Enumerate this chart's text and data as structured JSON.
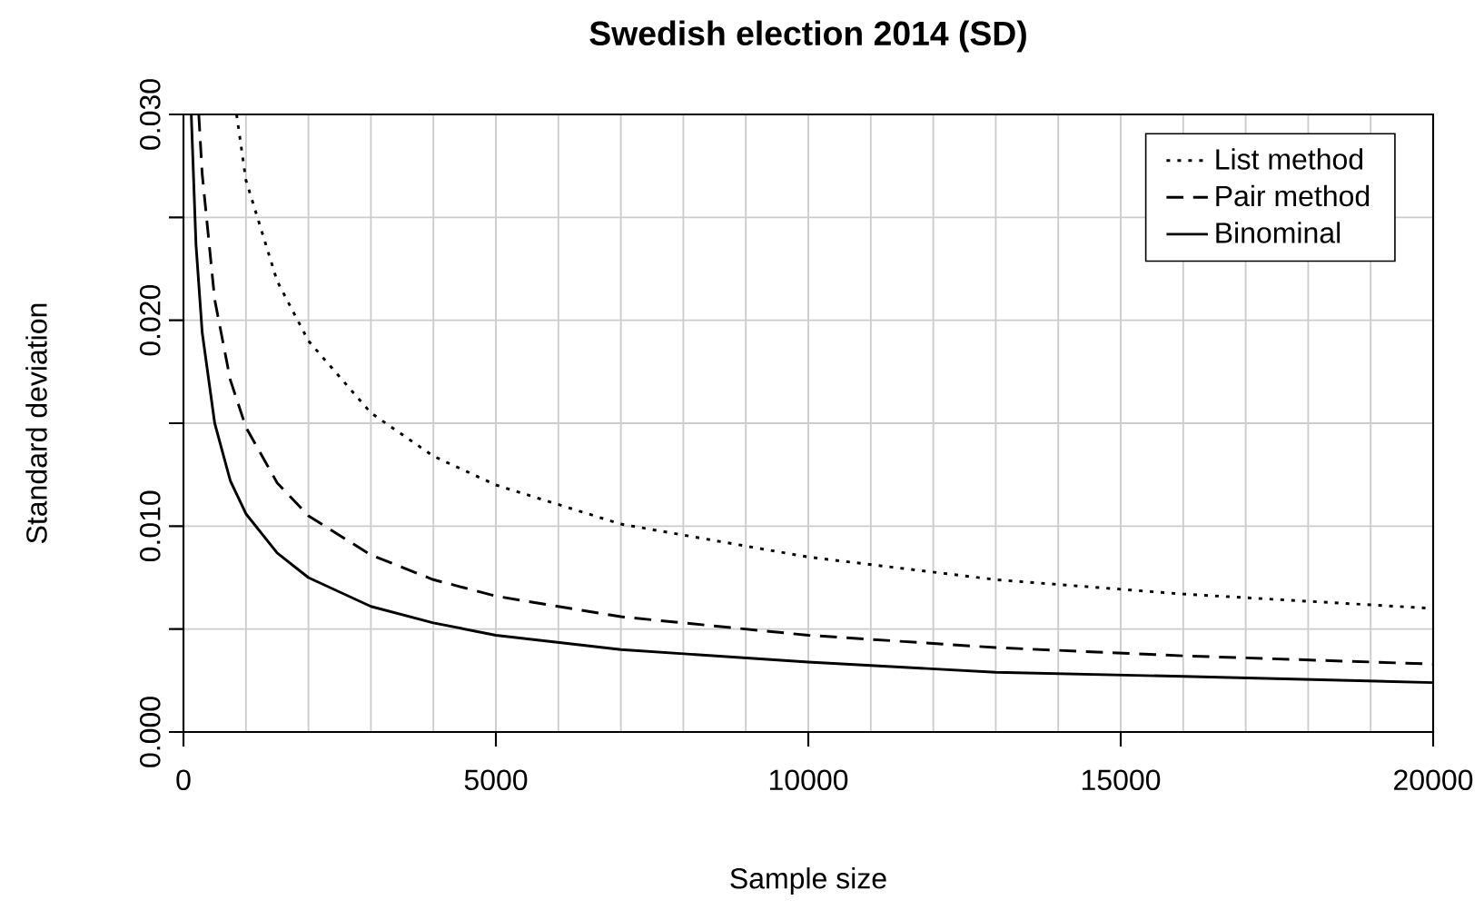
{
  "chart_data": {
    "type": "line",
    "title": "Swedish election 2014 (SD)",
    "xlabel": "Sample size",
    "ylabel": "Standard deviation",
    "xlim": [
      0,
      20000
    ],
    "ylim": [
      0,
      0.03
    ],
    "xticks": [
      0,
      {
        "value": 1000,
        "label": null
      },
      {
        "value": 2000,
        "label": null
      },
      {
        "value": 3000,
        "label": null
      },
      {
        "value": 4000,
        "label": null
      },
      5000,
      {
        "value": 6000,
        "label": null
      },
      {
        "value": 7000,
        "label": null
      },
      {
        "value": 8000,
        "label": null
      },
      {
        "value": 9000,
        "label": null
      },
      10000,
      {
        "value": 11000,
        "label": null
      },
      {
        "value": 12000,
        "label": null
      },
      {
        "value": 13000,
        "label": null
      },
      {
        "value": 14000,
        "label": null
      },
      15000,
      {
        "value": 16000,
        "label": null
      },
      {
        "value": 17000,
        "label": null
      },
      {
        "value": 18000,
        "label": null
      },
      {
        "value": 19000,
        "label": null
      },
      20000
    ],
    "yticks": [
      {
        "value": 0,
        "label": "0.000"
      },
      {
        "value": 0.005,
        "label": null
      },
      {
        "value": 0.01,
        "label": "0.010"
      },
      {
        "value": 0.015,
        "label": null
      },
      {
        "value": 0.02,
        "label": "0.020"
      },
      {
        "value": 0.025,
        "label": null
      },
      {
        "value": 0.03,
        "label": "0.030"
      }
    ],
    "grid": true,
    "legend": "top right",
    "series": [
      {
        "name": "List method",
        "color": "#000000",
        "line_style": "dotted",
        "x": [
          850,
          1000,
          1500,
          2000,
          3000,
          4000,
          5000,
          7000,
          10000,
          13000,
          16000,
          20000
        ],
        "values": [
          0.03,
          0.0268,
          0.0219,
          0.019,
          0.0155,
          0.0134,
          0.012,
          0.0101,
          0.0085,
          0.0074,
          0.0067,
          0.006
        ]
      },
      {
        "name": "Pair method",
        "color": "#000000",
        "line_style": "dashed",
        "x": [
          245,
          300,
          500,
          750,
          1000,
          1500,
          2000,
          3000,
          4000,
          5000,
          7000,
          10000,
          13000,
          16000,
          20000
        ],
        "values": [
          0.03,
          0.0271,
          0.021,
          0.0171,
          0.0148,
          0.0121,
          0.0105,
          0.0086,
          0.0074,
          0.0066,
          0.0056,
          0.0047,
          0.0041,
          0.0037,
          0.0033
        ]
      },
      {
        "name": "Binominal",
        "color": "#000000",
        "line_style": "solid",
        "x": [
          125,
          200,
          300,
          500,
          750,
          1000,
          1500,
          2000,
          3000,
          4000,
          5000,
          7000,
          10000,
          13000,
          16000,
          20000
        ],
        "values": [
          0.03,
          0.0237,
          0.0194,
          0.015,
          0.0122,
          0.0106,
          0.0087,
          0.0075,
          0.0061,
          0.0053,
          0.0047,
          0.004,
          0.0034,
          0.0029,
          0.0027,
          0.0024
        ]
      }
    ]
  }
}
